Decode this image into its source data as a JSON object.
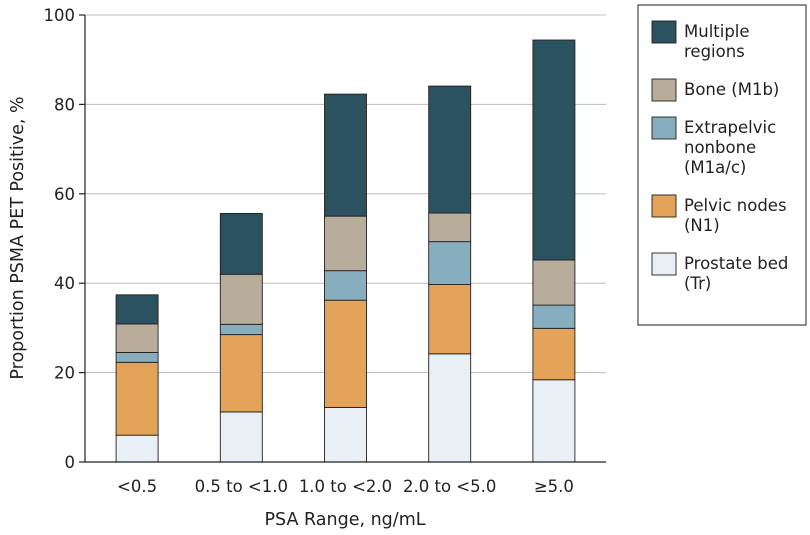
{
  "chart_data": {
    "type": "bar",
    "stacked": true,
    "title": "",
    "xlabel": "PSA Range, ng/mL",
    "ylabel": "Proportion PSMA PET Positive, %",
    "ylim": [
      0,
      100
    ],
    "yticks": [
      0,
      20,
      40,
      60,
      80,
      100
    ],
    "grid": "horizontal",
    "legend_position": "right",
    "categories": [
      "<0.5",
      "0.5 to <1.0",
      "1.0 to <2.0",
      "2.0 to <5.0",
      "≥5.0"
    ],
    "series": [
      {
        "name": "Prostate bed (Tr)",
        "legend_lines": [
          "Prostate bed",
          "(Tr)"
        ],
        "color": "#e8f0f5",
        "values": [
          6.0,
          11.2,
          12.2,
          24.2,
          18.4
        ]
      },
      {
        "name": "Pelvic nodes (N1)",
        "legend_lines": [
          "Pelvic nodes",
          "(N1)"
        ],
        "color": "#e3a358",
        "values": [
          16.3,
          17.3,
          24.0,
          15.5,
          11.5
        ]
      },
      {
        "name": "Extrapelvic nonbone (M1a/c)",
        "legend_lines": [
          "Extrapelvic",
          "nonbone",
          "(M1a/c)"
        ],
        "color": "#87aebe",
        "values": [
          2.2,
          2.3,
          6.6,
          9.6,
          5.2
        ]
      },
      {
        "name": "Bone (M1b)",
        "legend_lines": [
          "Bone (M1b)"
        ],
        "color": "#b8ad9b",
        "values": [
          6.4,
          11.2,
          12.2,
          6.4,
          10.1
        ]
      },
      {
        "name": "Multiple regions",
        "legend_lines": [
          "Multiple",
          "regions"
        ],
        "color": "#2b5261",
        "values": [
          6.5,
          13.6,
          27.3,
          28.4,
          49.2
        ]
      }
    ]
  }
}
